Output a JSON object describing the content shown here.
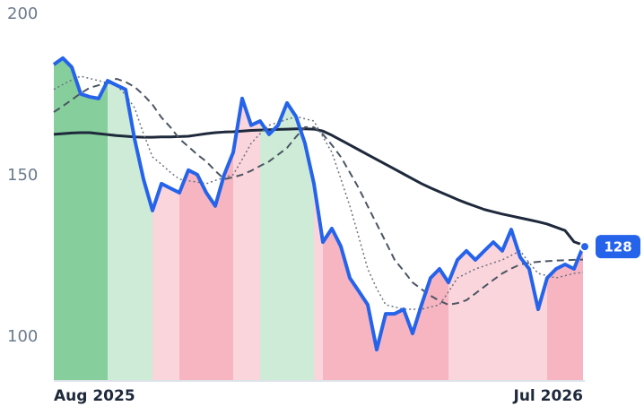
{
  "chart_data": {
    "type": "line",
    "ylim": [
      86.4,
      204.4
    ],
    "yticks": [
      100,
      150,
      200
    ],
    "xlim": [
      0,
      59
    ],
    "xticks": [
      {
        "value": 0,
        "label": "Aug 2025"
      },
      {
        "value": 59,
        "label": "Jul 2026"
      }
    ],
    "series": [
      {
        "color": "#1e293b",
        "style": "solid",
        "values": [
          162.8,
          163.0,
          163.2,
          163.3,
          163.3,
          163.0,
          162.7,
          162.4,
          162.2,
          162.0,
          161.9,
          161.9,
          162.0,
          162.0,
          162.1,
          162.2,
          162.6,
          163.0,
          163.3,
          163.5,
          163.6,
          163.8,
          164.0,
          164.1,
          164.2,
          164.3,
          164.4,
          164.5,
          164.5,
          164.4,
          163.8,
          162.5,
          161.0,
          159.5,
          158.0,
          156.5,
          155.0,
          153.5,
          152.0,
          150.5,
          149.0,
          147.5,
          146.2,
          145.0,
          143.8,
          142.6,
          141.5,
          140.5,
          139.5,
          138.8,
          138.1,
          137.5,
          136.9,
          136.3,
          135.7,
          135.0,
          134.0,
          133.0,
          129.5,
          128.5
        ]
      },
      {
        "color": "#4b5563",
        "style": "dashed",
        "values": [
          169.7,
          171.5,
          173.5,
          175.5,
          177.2,
          178.0,
          179.0,
          180.0,
          179.0,
          177.5,
          175.0,
          172.0,
          168.0,
          165.0,
          161.4,
          159.0,
          156.5,
          154.4,
          151.5,
          148.9,
          149.5,
          150.3,
          151.5,
          153.0,
          154.4,
          156.5,
          158.6,
          162.0,
          165.0,
          165.0,
          162.8,
          159.5,
          155.8,
          151.0,
          146.1,
          140.5,
          135.0,
          129.5,
          123.9,
          120.5,
          116.9,
          114.8,
          112.8,
          111.2,
          110.0,
          110.5,
          111.4,
          113.5,
          115.6,
          117.7,
          119.7,
          121.2,
          122.5,
          123.0,
          123.3,
          123.5,
          123.7,
          123.8,
          123.9,
          124.0
        ]
      },
      {
        "color": "#6b7280",
        "style": "dotted",
        "values": [
          176.7,
          178.2,
          179.6,
          180.8,
          180.1,
          179.4,
          178.7,
          178.0,
          175.0,
          171.0,
          163.0,
          155.8,
          153.5,
          151.0,
          148.9,
          148.4,
          148.0,
          147.5,
          148.5,
          149.4,
          150.3,
          155.0,
          160.0,
          163.0,
          165.6,
          166.5,
          167.4,
          168.3,
          167.6,
          166.9,
          162.0,
          157.2,
          149.0,
          140.6,
          131.0,
          121.1,
          115.0,
          110.0,
          109.3,
          108.6,
          108.6,
          108.6,
          109.3,
          110.0,
          114.0,
          118.3,
          119.7,
          121.1,
          122.0,
          123.0,
          123.9,
          125.3,
          126.7,
          123.0,
          119.7,
          119.0,
          118.3,
          119.0,
          119.7,
          120.0
        ]
      },
      {
        "color": "#2563eb",
        "style": "solid",
        "values": [
          184.4,
          186.4,
          183.6,
          175.3,
          174.4,
          173.9,
          179.4,
          178.0,
          176.7,
          161.4,
          148.9,
          139.2,
          147.5,
          146.1,
          144.7,
          151.7,
          150.3,
          144.7,
          140.6,
          150.3,
          157.2,
          173.9,
          165.6,
          166.9,
          162.8,
          165.6,
          172.5,
          168.3,
          160.0,
          147.5,
          129.4,
          133.6,
          128.1,
          118.3,
          114.2,
          110.0,
          96.1,
          107.2,
          107.2,
          108.6,
          101.1,
          110.0,
          118.3,
          121.1,
          116.9,
          123.9,
          126.7,
          123.9,
          126.7,
          129.4,
          126.7,
          133.3,
          124.7,
          121.1,
          108.6,
          118.3,
          121.1,
          122.5,
          121.1,
          128
        ]
      }
    ],
    "bands": [
      {
        "start": 0,
        "end": 6,
        "color": "#86cf9c"
      },
      {
        "start": 6,
        "end": 11,
        "color": "#cdebd6"
      },
      {
        "start": 11,
        "end": 14,
        "color": "#fbd5dc"
      },
      {
        "start": 14,
        "end": 20,
        "color": "#f7b5c1"
      },
      {
        "start": 20,
        "end": 23,
        "color": "#fbd5dc"
      },
      {
        "start": 23,
        "end": 29,
        "color": "#cdebd6"
      },
      {
        "start": 29,
        "end": 30,
        "color": "#fbd5dc"
      },
      {
        "start": 30,
        "end": 44,
        "color": "#f7b5c1"
      },
      {
        "start": 44,
        "end": 55,
        "color": "#fbd5dc"
      },
      {
        "start": 55,
        "end": 59,
        "color": "#f7b5c1"
      }
    ],
    "band_series": 3,
    "last_value": 128,
    "last_color": "#2563eb"
  }
}
